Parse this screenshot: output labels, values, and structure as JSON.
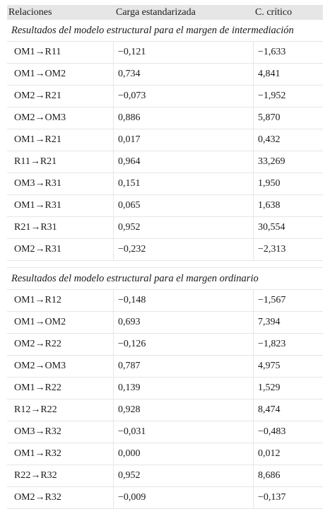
{
  "headers": [
    "Relaciones",
    "Carga estandarizada",
    "C. crítico"
  ],
  "sections": [
    {
      "title": "Resultados del modelo estructural para el margen de intermediación",
      "rows": [
        [
          "OM1→R11",
          "−0,121",
          "−1,633"
        ],
        [
          "OM1→OM2",
          "0,734",
          "4,841"
        ],
        [
          "OM2→R21",
          "−0,073",
          "−1,952"
        ],
        [
          "OM2→OM3",
          "0,886",
          "5,870"
        ],
        [
          "OM1→R21",
          "0,017",
          "0,432"
        ],
        [
          "R11→R21",
          "0,964",
          "33,269"
        ],
        [
          "OM3→R31",
          "0,151",
          "1,950"
        ],
        [
          "OM1→R31",
          "0,065",
          "1,638"
        ],
        [
          "R21→R31",
          "0,952",
          "30,554"
        ],
        [
          "OM2→R31",
          "−0,232",
          "−2,313"
        ]
      ]
    },
    {
      "title": "Resultados del modelo estructural para el margen ordinario",
      "rows": [
        [
          "OM1→R12",
          "−0,148",
          "−1,567"
        ],
        [
          "OM1→OM2",
          "0,693",
          "7,394"
        ],
        [
          "OM2→R22",
          "−0,126",
          "−1,823"
        ],
        [
          "OM2→OM3",
          "0,787",
          "4,975"
        ],
        [
          "OM1→R22",
          "0,139",
          "1,529"
        ],
        [
          "R12→R22",
          "0,928",
          "8,474"
        ],
        [
          "OM3→R32",
          "−0,031",
          "−0,483"
        ],
        [
          "OM1→R32",
          "0,000",
          "0,012"
        ],
        [
          "R22→R32",
          "0,952",
          "8,686"
        ],
        [
          "OM2→R32",
          "−0,009",
          "−0,137"
        ]
      ]
    }
  ]
}
